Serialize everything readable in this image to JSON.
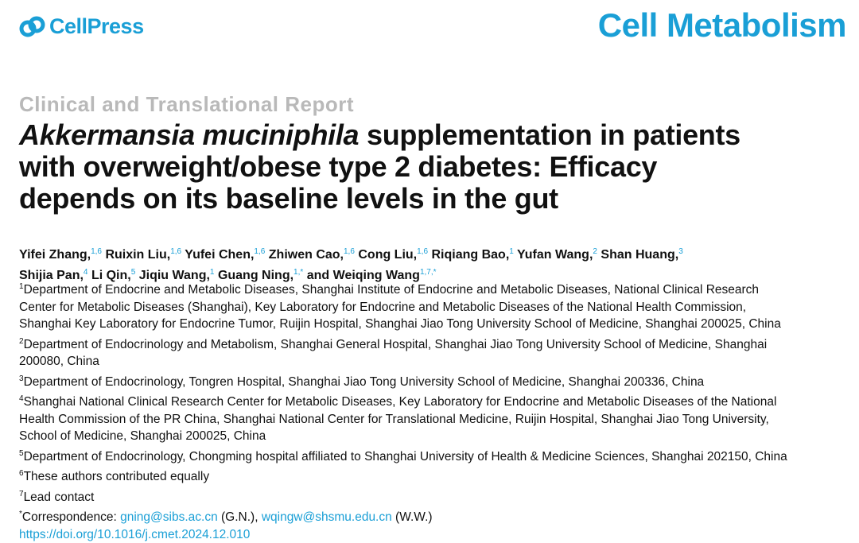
{
  "header": {
    "logo_text": "CellPress",
    "journal": "Cell Metabolism"
  },
  "section_label": "Clinical and Translational Report",
  "title": {
    "italic": "Akkermansia muciniphila",
    "line1_rest": " supplementation in patients",
    "line2": "with overweight/obese type 2 diabetes: Efficacy",
    "line3": "depends on its baseline levels in the gut"
  },
  "authors": [
    {
      "name": "Yifei Zhang,",
      "sup": "1,6"
    },
    {
      "name": "Ruixin Liu,",
      "sup": "1,6"
    },
    {
      "name": "Yufei Chen,",
      "sup": "1,6"
    },
    {
      "name": "Zhiwen Cao,",
      "sup": "1,6"
    },
    {
      "name": "Cong Liu,",
      "sup": "1,6"
    },
    {
      "name": "Riqiang Bao,",
      "sup": "1"
    },
    {
      "name": "Yufan Wang,",
      "sup": "2"
    },
    {
      "name": "Shan Huang,",
      "sup": "3"
    },
    {
      "name": "Shijia Pan,",
      "sup": "4"
    },
    {
      "name": "Li Qin,",
      "sup": "5"
    },
    {
      "name": "Jiqiu Wang,",
      "sup": "1"
    },
    {
      "name": "Guang Ning,",
      "sup": "1,*"
    },
    {
      "name": "and Weiqing Wang",
      "sup": "1,7,*"
    }
  ],
  "affiliations": {
    "a1_sup": "1",
    "a1_l1": "Department of Endocrine and Metabolic Diseases, Shanghai Institute of Endocrine and Metabolic Diseases, National Clinical Research",
    "a1_l2": "Center for Metabolic Diseases (Shanghai), Key Laboratory for Endocrine and Metabolic Diseases of the National Health Commission,",
    "a1_l3": "Shanghai Key Laboratory for Endocrine Tumor, Ruijin Hospital, Shanghai Jiao Tong University School of Medicine, Shanghai 200025, China",
    "a2_sup": "2",
    "a2_l1": "Department of Endocrinology and Metabolism, Shanghai General Hospital, Shanghai Jiao Tong University School of Medicine, Shanghai",
    "a2_l2": "200080, China",
    "a3_sup": "3",
    "a3_l1": "Department of Endocrinology, Tongren Hospital, Shanghai Jiao Tong University School of Medicine, Shanghai 200336, China",
    "a4_sup": "4",
    "a4_l1": "Shanghai National Clinical Research Center for Metabolic Diseases, Key Laboratory for Endocrine and Metabolic Diseases of the National",
    "a4_l2": "Health Commission of the PR China, Shanghai National Center for Translational Medicine, Ruijin Hospital, Shanghai Jiao Tong University,",
    "a4_l3": "School of Medicine, Shanghai 200025, China",
    "a5_sup": "5",
    "a5_l1": "Department of Endocrinology, Chongming hospital affiliated to Shanghai University of Health & Medicine Sciences, Shanghai 202150, China",
    "a6_sup": "6",
    "a6_l1": "These authors contributed equally",
    "a7_sup": "7",
    "a7_l1": "Lead contact",
    "corr_sup": "*",
    "corr_label": "Correspondence: ",
    "email1": "gning@sibs.ac.cn",
    "email1_suffix": " (G.N.), ",
    "email2": "wqingw@shsmu.edu.cn",
    "email2_suffix": " (W.W.)",
    "doi": "https://doi.org/10.1016/j.cmet.2024.12.010"
  }
}
